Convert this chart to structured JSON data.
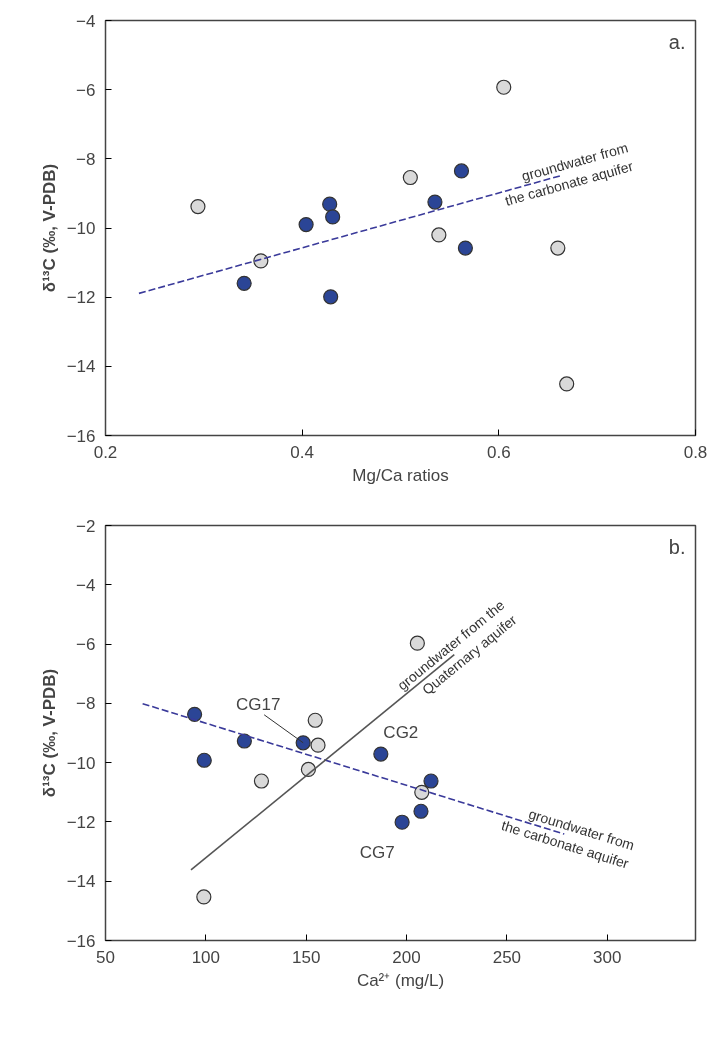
{
  "chart_data": [
    {
      "type": "scatter",
      "xlabel": "Mg/Ca ratios",
      "ylabel": "δ¹³C (‰, V-PDB)",
      "xlim": [
        0.2,
        0.8
      ],
      "ylim": [
        -16,
        -4
      ],
      "xticks": [
        {
          "value": 0.2,
          "label": "0.2"
        },
        {
          "value": 0.4,
          "label": "0.4"
        },
        {
          "value": 0.6,
          "label": "0.6"
        },
        {
          "value": 0.8,
          "label": "0.8"
        }
      ],
      "yticks": [
        -16,
        -14,
        -12,
        -10,
        -8,
        -6,
        -4
      ],
      "grid": false,
      "annotations": [
        "a."
      ],
      "series": [
        {
          "color": "#d9d9d9",
          "marker": "circle",
          "x": [
            0.294,
            0.358,
            0.51,
            0.539,
            0.605,
            0.66,
            0.669
          ],
          "values": [
            -9.38,
            -10.95,
            -8.54,
            -10.2,
            -5.93,
            -10.58,
            -14.51
          ]
        },
        {
          "color": "#2b4596",
          "marker": "circle",
          "x": [
            0.341,
            0.404,
            0.428,
            0.431,
            0.429,
            0.535,
            0.562,
            0.566
          ],
          "values": [
            -11.6,
            -9.9,
            -9.31,
            -9.68,
            -11.99,
            -9.25,
            -8.35,
            -10.58
          ]
        },
        {
          "type": "line",
          "name": "groundwater from\nthe carbonate aquifer",
          "color": "#3a3a9a",
          "line_style": "dashed",
          "marker": "none",
          "x": [
            0.234,
            0.665
          ],
          "values": [
            -11.89,
            -8.47
          ]
        }
      ]
    },
    {
      "type": "scatter",
      "xlabel": "Ca²⁺ (mg/L)",
      "ylabel": "δ¹³C (‰, V-PDB)",
      "xlim": [
        50,
        344
      ],
      "ylim": [
        -16,
        -2
      ],
      "xticks": [
        50,
        100,
        150,
        200,
        250,
        300
      ],
      "yticks": [
        -16,
        -14,
        -12,
        -10,
        -8,
        -6,
        -4,
        -2
      ],
      "grid": false,
      "annotations": [
        "b.",
        {
          "text": "CG17",
          "x": 148.5,
          "y": -9.33
        },
        {
          "text": "CG2",
          "x": 187.2,
          "y": -9.71
        },
        {
          "text": "CG7",
          "x": 197.8,
          "y": -12.01
        }
      ],
      "series": [
        {
          "color": "#d9d9d9",
          "marker": "circle",
          "x": [
            205.4,
            154.5,
            155.9,
            151.1,
            127.7,
            207.6,
            99.0
          ],
          "values": [
            -5.97,
            -8.57,
            -9.41,
            -10.23,
            -10.62,
            -11.0,
            -14.53
          ]
        },
        {
          "color": "#2b4596",
          "marker": "circle",
          "x": [
            94.4,
            99.2,
            119.2,
            148.5,
            187.2,
            212.2,
            207.2,
            197.8
          ],
          "values": [
            -8.37,
            -9.92,
            -9.27,
            -9.33,
            -9.71,
            -10.62,
            -11.64,
            -12.01
          ]
        },
        {
          "type": "line",
          "name": "groundwater from\nthe carbonate aquifer",
          "color": "#3a3a9a",
          "line_style": "dashed",
          "marker": "none",
          "x": [
            68.5,
            278.6
          ],
          "values": [
            -8.01,
            -12.41
          ]
        },
        {
          "type": "line",
          "name": "groundwater from the\nQuaternary aquifer",
          "color": "#555555",
          "line_style": "solid",
          "marker": "none",
          "x": [
            92.6,
            223.8
          ],
          "values": [
            -13.62,
            -6.36
          ]
        }
      ]
    }
  ]
}
